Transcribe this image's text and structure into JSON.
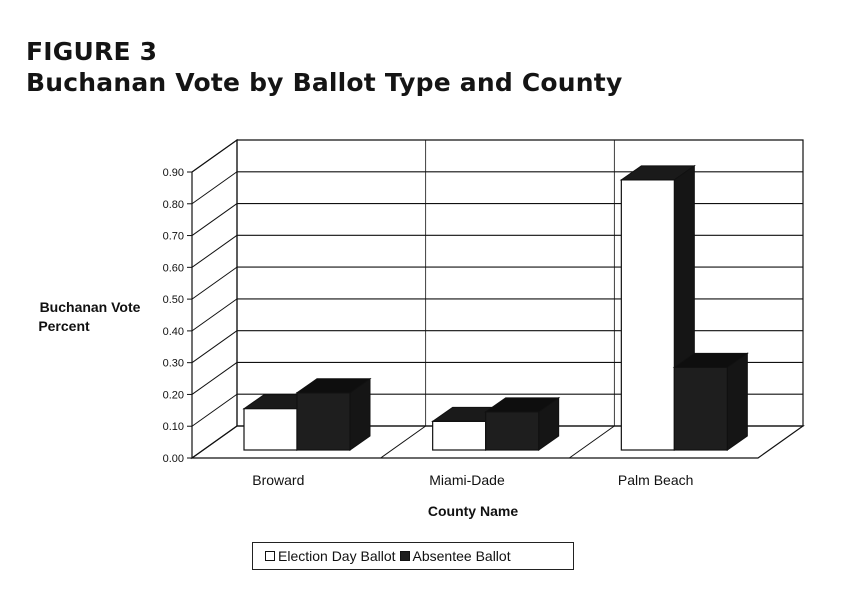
{
  "figure": {
    "label": "FIGURE 3",
    "title": "Buchanan Vote by Ballot Type and County"
  },
  "colors": {
    "election_day": "#ffffff",
    "absentee": "#1e1e1e",
    "outline": "#111111"
  },
  "chart_data": {
    "type": "bar",
    "title": "Buchanan Vote by Ballot Type and County",
    "xlabel": "County Name",
    "ylabel": "Buchanan Vote Percent",
    "categories": [
      "Broward",
      "Miami-Dade",
      "Palm Beach"
    ],
    "series": [
      {
        "name": "Election Day Ballot",
        "values": [
          0.13,
          0.09,
          0.85
        ]
      },
      {
        "name": "Absentee Ballot",
        "values": [
          0.18,
          0.12,
          0.26
        ]
      }
    ],
    "ylim": [
      0,
      0.9
    ],
    "yticks": [
      "0.00",
      "0.10",
      "0.20",
      "0.30",
      "0.40",
      "0.50",
      "0.60",
      "0.70",
      "0.80",
      "0.90"
    ],
    "grid": true,
    "legend_position": "bottom"
  }
}
